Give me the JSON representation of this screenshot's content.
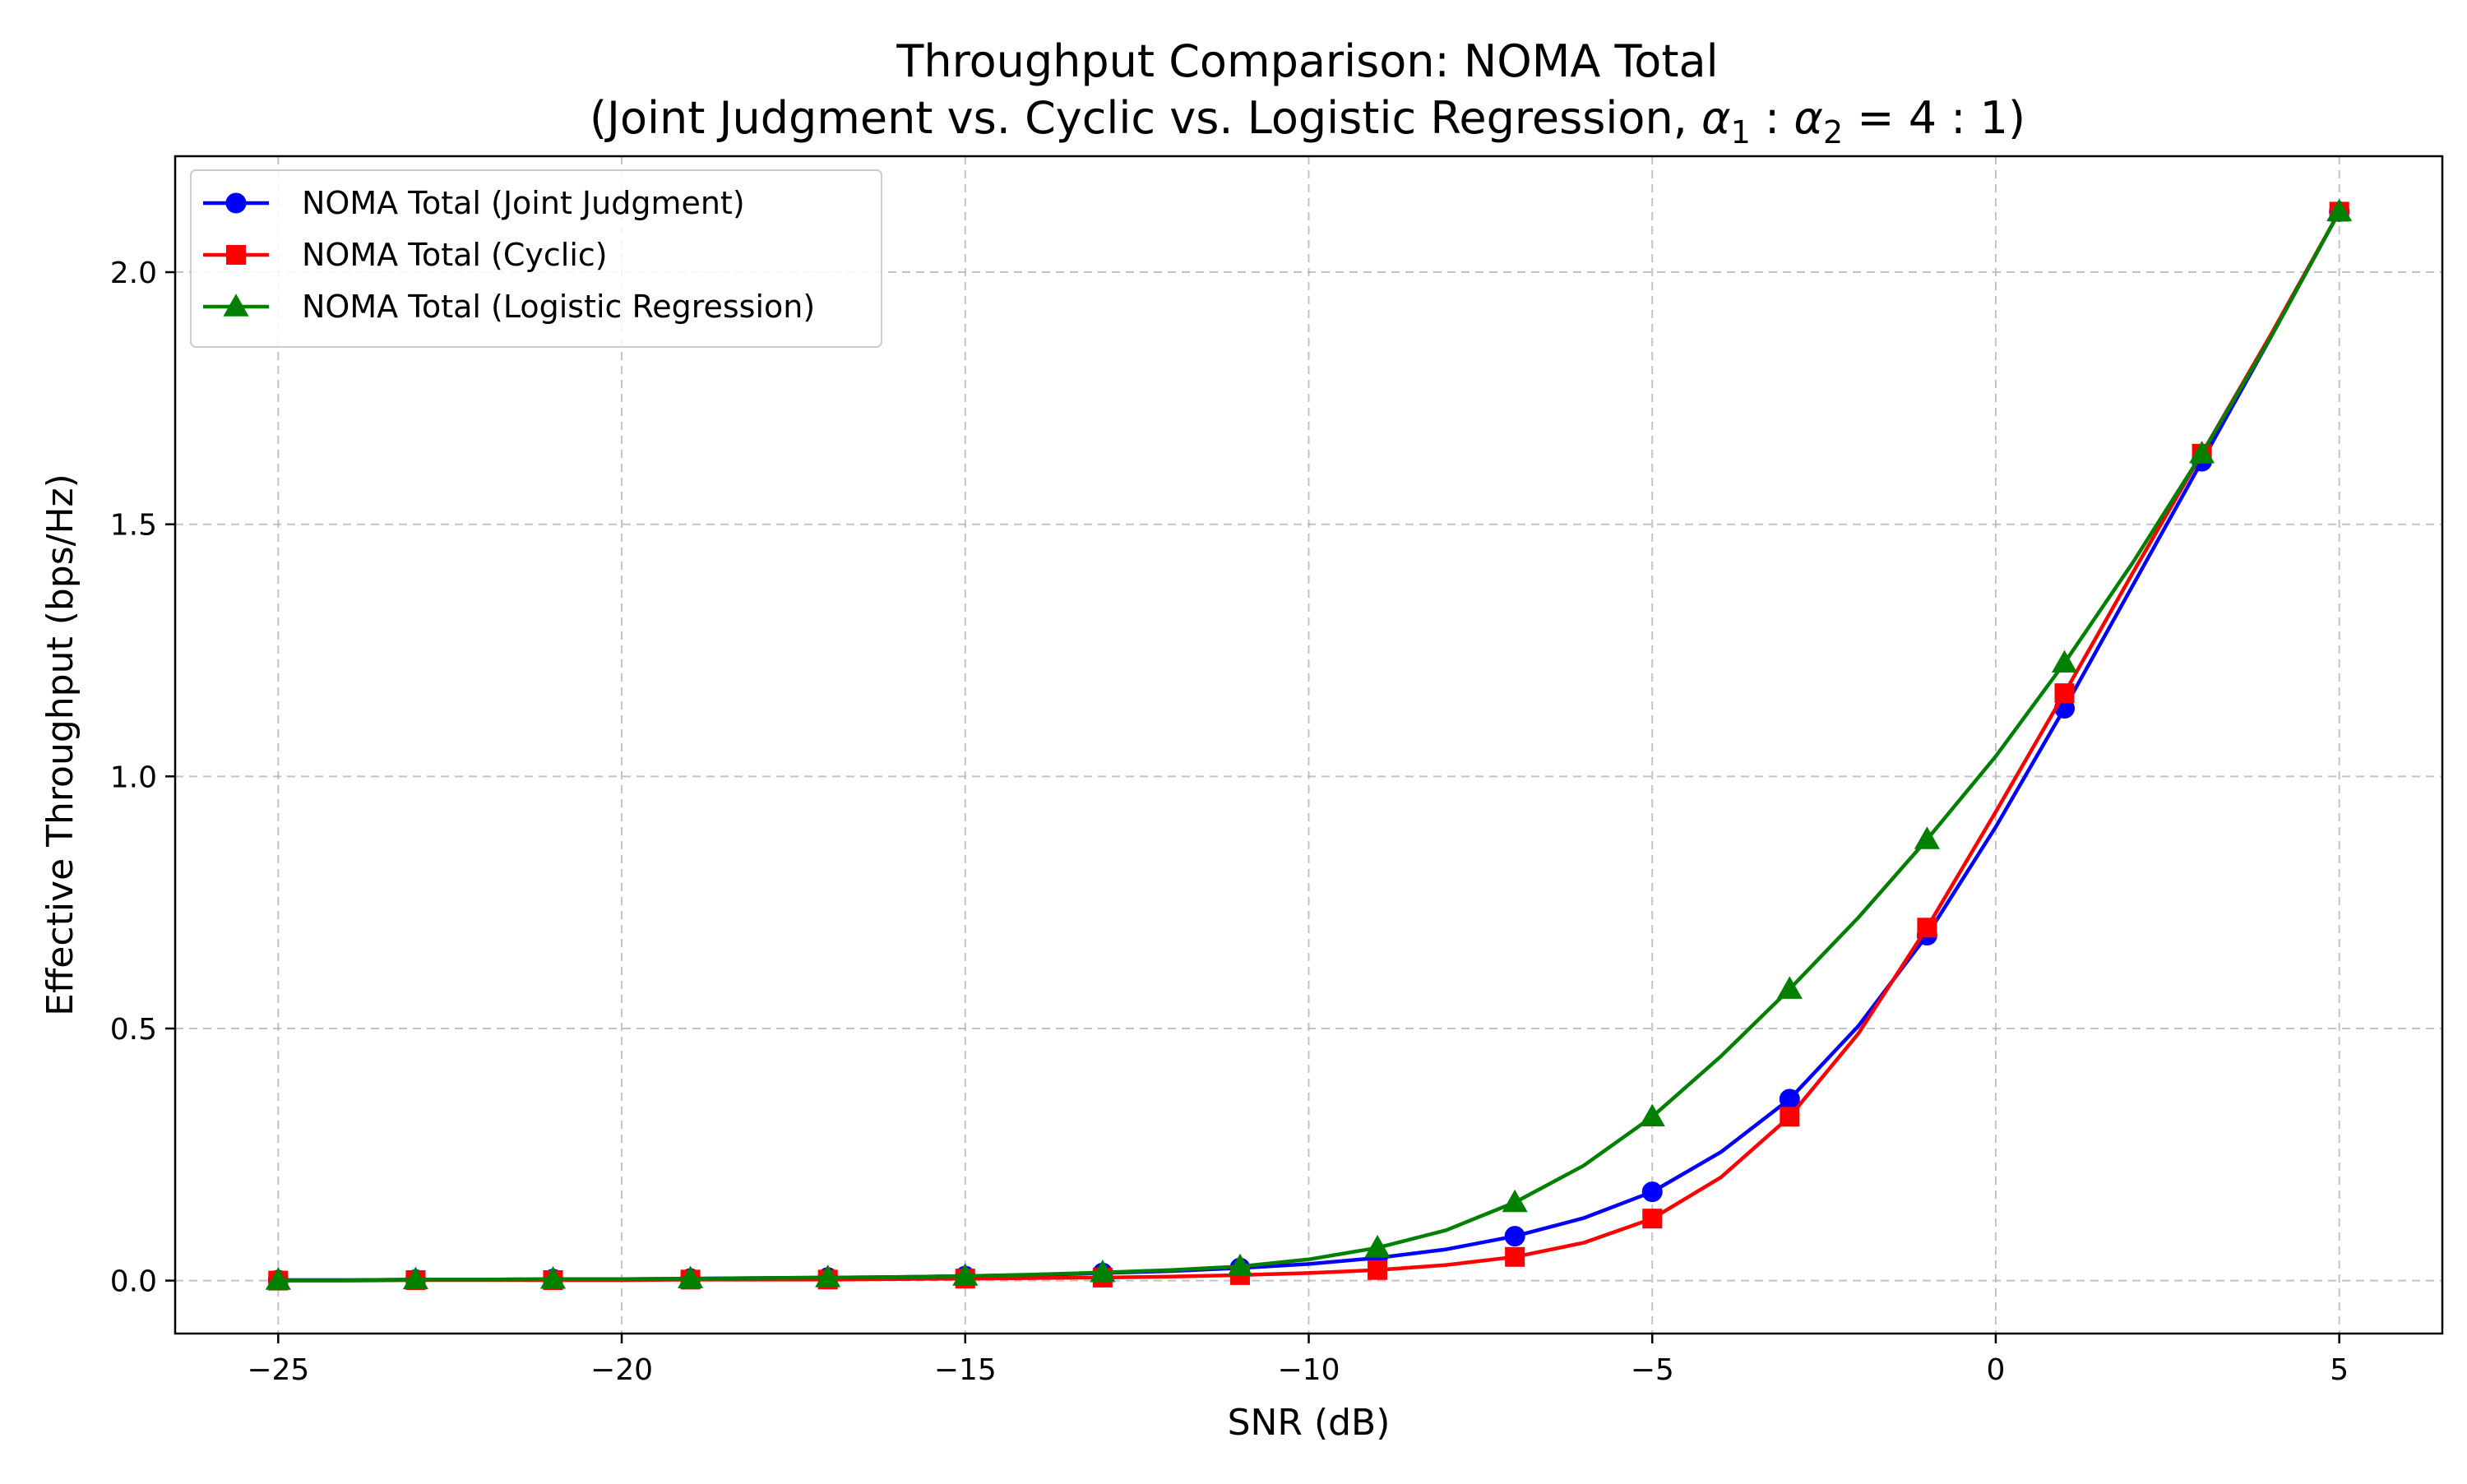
{
  "chart_data": {
    "type": "line",
    "title": "Throughput Comparison: NOMA Total",
    "subtitle_parts": [
      "(Joint Judgment vs. Cyclic vs. Logistic Regression, ",
      "α",
      "1",
      " : ",
      "α",
      "2",
      " = 4 : 1)"
    ],
    "xlabel": "SNR (dB)",
    "ylabel": "Effective Throughput (bps/Hz)",
    "xlim": [
      -26.5,
      6.5
    ],
    "ylim": [
      -0.105,
      2.23
    ],
    "x_ticks": [
      -25,
      -20,
      -15,
      -10,
      -5,
      0,
      5
    ],
    "x_tick_labels": [
      "−25",
      "−20",
      "−15",
      "−10",
      "−5",
      "0",
      "5"
    ],
    "y_ticks": [
      0.0,
      0.5,
      1.0,
      1.5,
      2.0
    ],
    "y_tick_labels": [
      "0.0",
      "0.5",
      "1.0",
      "1.5",
      "2.0"
    ],
    "grid": true,
    "legend_position": "top-left",
    "x": [
      -25,
      -24,
      -23,
      -22,
      -21,
      -20,
      -19,
      -18,
      -17,
      -16,
      -15,
      -14,
      -13,
      -12,
      -11,
      -10,
      -9,
      -8,
      -7,
      -6,
      -5,
      -4,
      -3,
      -2,
      -1,
      0,
      1,
      2,
      3,
      4,
      5
    ],
    "marker_every": 2,
    "series": [
      {
        "name": "NOMA Total (Joint Judgment)",
        "color": "#0000ff",
        "marker": "circle",
        "values": [
          0.001,
          0.001,
          0.002,
          0.002,
          0.003,
          0.003,
          0.004,
          0.005,
          0.006,
          0.007,
          0.009,
          0.011,
          0.015,
          0.019,
          0.025,
          0.033,
          0.045,
          0.062,
          0.088,
          0.124,
          0.176,
          0.255,
          0.36,
          0.505,
          0.685,
          0.9,
          1.135,
          1.38,
          1.625,
          1.87,
          2.12
        ]
      },
      {
        "name": "NOMA Total (Cyclic)",
        "color": "#ff0000",
        "marker": "square",
        "values": [
          0.0,
          0.0,
          0.001,
          0.001,
          0.001,
          0.001,
          0.002,
          0.002,
          0.002,
          0.003,
          0.004,
          0.005,
          0.006,
          0.008,
          0.011,
          0.015,
          0.021,
          0.031,
          0.047,
          0.075,
          0.123,
          0.205,
          0.325,
          0.49,
          0.7,
          0.93,
          1.165,
          1.405,
          1.64,
          1.875,
          2.12
        ]
      },
      {
        "name": "NOMA Total (Logistic Regression)",
        "color": "#008000",
        "marker": "triangle",
        "values": [
          0.001,
          0.001,
          0.002,
          0.002,
          0.003,
          0.003,
          0.004,
          0.005,
          0.006,
          0.007,
          0.009,
          0.012,
          0.016,
          0.021,
          0.028,
          0.042,
          0.065,
          0.1,
          0.155,
          0.228,
          0.325,
          0.445,
          0.578,
          0.72,
          0.875,
          1.04,
          1.225,
          1.425,
          1.64,
          1.87,
          2.12
        ]
      }
    ]
  }
}
